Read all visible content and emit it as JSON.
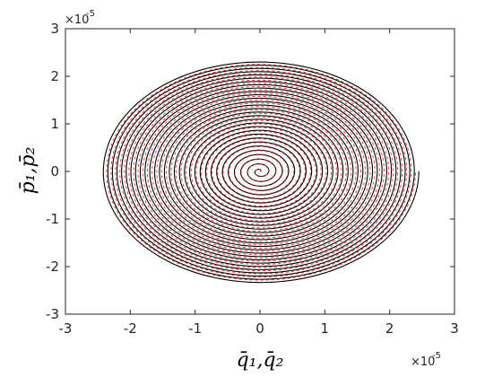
{
  "chart_data": {
    "type": "line",
    "title": "",
    "xlabel": "q̄₁,q̄₂",
    "ylabel": "p̄₁,p̄₂",
    "x_exponent_label": "×10",
    "x_exponent_power": "-5",
    "y_exponent_label": "×10",
    "y_exponent_power": "-5",
    "xlim": [
      -3,
      3
    ],
    "ylim": [
      -3,
      3
    ],
    "xticks": [
      "-3",
      "-2",
      "-1",
      "0",
      "1",
      "2",
      "3"
    ],
    "yticks": [
      "-3",
      "-2",
      "-1",
      "0",
      "1",
      "2",
      "3"
    ],
    "grid": false,
    "series": [
      {
        "color": "#000000",
        "style": "solid",
        "spiral": {
          "center": [
            0,
            0
          ],
          "max_radius_x": 2.45,
          "max_radius_y": 2.35,
          "turns": 30
        }
      },
      {
        "color": "#e8282b",
        "style": "dashed",
        "spiral": {
          "center": [
            0,
            0
          ],
          "max_radius_x": 2.4,
          "max_radius_y": 2.3,
          "turns": 30
        }
      }
    ]
  }
}
